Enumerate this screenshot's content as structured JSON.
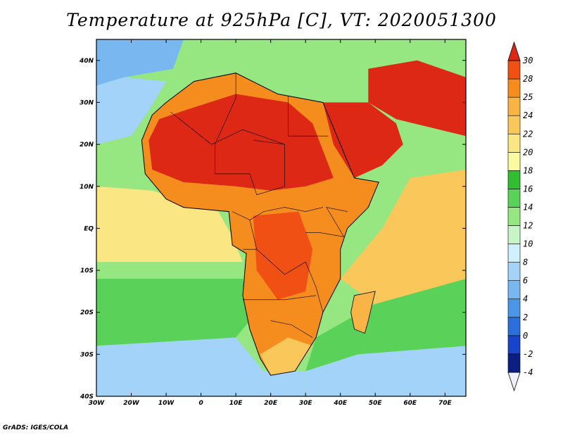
{
  "title": "Temperature at 925hPa [C], VT: 2020051300",
  "credit": "GrADS: IGES/COLA",
  "map": {
    "lon_range": [
      -30,
      76
    ],
    "lat_range": [
      -40,
      45
    ],
    "lon_ticks": [
      {
        "value": -30,
        "label": "30W"
      },
      {
        "value": -20,
        "label": "20W"
      },
      {
        "value": -10,
        "label": "10W"
      },
      {
        "value": 0,
        "label": "0"
      },
      {
        "value": 10,
        "label": "10E"
      },
      {
        "value": 20,
        "label": "20E"
      },
      {
        "value": 30,
        "label": "30E"
      },
      {
        "value": 40,
        "label": "40E"
      },
      {
        "value": 50,
        "label": "50E"
      },
      {
        "value": 60,
        "label": "60E"
      },
      {
        "value": 70,
        "label": "70E"
      }
    ],
    "lat_ticks": [
      {
        "value": 40,
        "label": "40N"
      },
      {
        "value": 30,
        "label": "30N"
      },
      {
        "value": 20,
        "label": "20N"
      },
      {
        "value": 10,
        "label": "10N"
      },
      {
        "value": 0,
        "label": "EQ"
      },
      {
        "value": -10,
        "label": "10S"
      },
      {
        "value": -20,
        "label": "20S"
      },
      {
        "value": -30,
        "label": "30S"
      },
      {
        "value": -40,
        "label": "40S"
      }
    ]
  },
  "colorbar": {
    "levels": [
      "30",
      "28",
      "25",
      "24",
      "22",
      "20",
      "18",
      "16",
      "14",
      "12",
      "10",
      "8",
      "6",
      "4",
      "2",
      "0",
      "-2",
      "-4"
    ],
    "colors": [
      "#f0f0fa",
      "#0d1e82",
      "#1744c8",
      "#2a6fdc",
      "#4b96e6",
      "#78b7f0",
      "#a3d3f8",
      "#cff0fc",
      "#c8f5c8",
      "#96e682",
      "#5ad25a",
      "#32be32",
      "#fafaa0",
      "#fae682",
      "#fac85a",
      "#fab446",
      "#f58c1e",
      "#f05014",
      "#dc2814"
    ]
  },
  "field": {
    "regions": [
      {
        "name": "north-cold-sea",
        "lonlat": [
          [
            -30,
            45
          ],
          [
            -5,
            45
          ],
          [
            -8,
            38
          ],
          [
            -22,
            36
          ],
          [
            -30,
            34
          ]
        ],
        "color": "#78b7f0"
      },
      {
        "name": "atlantic-mid",
        "lonlat": [
          [
            -30,
            34
          ],
          [
            -22,
            36
          ],
          [
            -10,
            35
          ],
          [
            -15,
            28
          ],
          [
            -20,
            22
          ],
          [
            -30,
            20
          ]
        ],
        "color": "#a3d3f8"
      },
      {
        "name": "atlantic-green",
        "lonlat": [
          [
            -30,
            20
          ],
          [
            -20,
            22
          ],
          [
            -17,
            15
          ],
          [
            -17,
            9
          ],
          [
            -30,
            10
          ]
        ],
        "color": "#96e682"
      },
      {
        "name": "tropical-atlantic",
        "lonlat": [
          [
            -30,
            10
          ],
          [
            -14,
            9
          ],
          [
            5,
            4
          ],
          [
            9,
            -2
          ],
          [
            12,
            -8
          ],
          [
            -30,
            -8
          ]
        ],
        "color": "#fae682"
      },
      {
        "name": "south-atlantic-green",
        "lonlat": [
          [
            -30,
            -12
          ],
          [
            12,
            -12
          ],
          [
            14,
            -22
          ],
          [
            10,
            -26
          ],
          [
            -30,
            -28
          ]
        ],
        "color": "#5ad25a"
      },
      {
        "name": "south-atlantic-blue",
        "lonlat": [
          [
            -30,
            -28
          ],
          [
            10,
            -26
          ],
          [
            18,
            -34
          ],
          [
            30,
            -34
          ],
          [
            30,
            -40
          ],
          [
            -30,
            -40
          ]
        ],
        "color": "#a3d3f8"
      },
      {
        "name": "indian-south",
        "lonlat": [
          [
            30,
            -34
          ],
          [
            45,
            -30
          ],
          [
            76,
            -28
          ],
          [
            76,
            -40
          ],
          [
            30,
            -40
          ]
        ],
        "color": "#a3d3f8"
      },
      {
        "name": "indian-mid",
        "lonlat": [
          [
            33,
            -26
          ],
          [
            50,
            -18
          ],
          [
            76,
            -12
          ],
          [
            76,
            -28
          ],
          [
            45,
            -30
          ],
          [
            30,
            -34
          ]
        ],
        "color": "#5ad25a"
      },
      {
        "name": "indian-tropical",
        "lonlat": [
          [
            40,
            -12
          ],
          [
            52,
            0
          ],
          [
            60,
            12
          ],
          [
            76,
            14
          ],
          [
            76,
            -12
          ],
          [
            50,
            -18
          ]
        ],
        "color": "#fac85a"
      },
      {
        "name": "mediterranean",
        "lonlat": [
          [
            -6,
            36
          ],
          [
            12,
            38
          ],
          [
            28,
            37
          ],
          [
            36,
            36
          ],
          [
            34,
            33
          ],
          [
            20,
            32
          ],
          [
            10,
            34
          ],
          [
            -2,
            35
          ]
        ],
        "color": "#96e682"
      },
      {
        "name": "africa-land",
        "lonlat": [
          [
            -17,
            21
          ],
          [
            -16,
            13
          ],
          [
            -10,
            7
          ],
          [
            -5,
            5
          ],
          [
            8,
            4
          ],
          [
            9,
            -4
          ],
          [
            13,
            -6
          ],
          [
            12,
            -16
          ],
          [
            14,
            -24
          ],
          [
            17,
            -31
          ],
          [
            20,
            -35
          ],
          [
            27,
            -34
          ],
          [
            33,
            -26
          ],
          [
            35,
            -20
          ],
          [
            40,
            -12
          ],
          [
            40,
            -5
          ],
          [
            42,
            0
          ],
          [
            48,
            5
          ],
          [
            51,
            11
          ],
          [
            44,
            12
          ],
          [
            35,
            30
          ],
          [
            22,
            32
          ],
          [
            10,
            37
          ],
          [
            -2,
            35
          ],
          [
            -10,
            30
          ],
          [
            -14,
            27
          ]
        ],
        "color": "#f58c1e"
      },
      {
        "name": "sahara-hot",
        "lonlat": [
          [
            -15,
            21
          ],
          [
            -14,
            14
          ],
          [
            -5,
            11
          ],
          [
            10,
            10
          ],
          [
            20,
            9
          ],
          [
            30,
            10
          ],
          [
            38,
            12
          ],
          [
            32,
            25
          ],
          [
            25,
            30
          ],
          [
            10,
            32
          ],
          [
            -5,
            28
          ],
          [
            -12,
            26
          ]
        ],
        "color": "#dc2814"
      },
      {
        "name": "central-africa-hot",
        "lonlat": [
          [
            15,
            3
          ],
          [
            28,
            4
          ],
          [
            32,
            -5
          ],
          [
            30,
            -15
          ],
          [
            22,
            -17
          ],
          [
            16,
            -10
          ]
        ],
        "color": "#f05014"
      },
      {
        "name": "arabia",
        "lonlat": [
          [
            35,
            30
          ],
          [
            48,
            30
          ],
          [
            56,
            25
          ],
          [
            58,
            20
          ],
          [
            52,
            15
          ],
          [
            44,
            12
          ],
          [
            38,
            20
          ]
        ],
        "color": "#dc2814"
      },
      {
        "name": "persia",
        "lonlat": [
          [
            48,
            38
          ],
          [
            62,
            40
          ],
          [
            76,
            36
          ],
          [
            76,
            22
          ],
          [
            66,
            24
          ],
          [
            56,
            26
          ],
          [
            48,
            30
          ]
        ],
        "color": "#dc2814"
      },
      {
        "name": "cape-south",
        "lonlat": [
          [
            17,
            -30
          ],
          [
            20,
            -35
          ],
          [
            27,
            -34
          ],
          [
            32,
            -28
          ],
          [
            25,
            -26
          ]
        ],
        "color": "#fac85a"
      }
    ],
    "coast_outline": [
      [
        -17,
        21
      ],
      [
        -16,
        13
      ],
      [
        -10,
        7
      ],
      [
        -5,
        5
      ],
      [
        8,
        4
      ],
      [
        9,
        -4
      ],
      [
        13,
        -6
      ],
      [
        12,
        -16
      ],
      [
        14,
        -24
      ],
      [
        17,
        -31
      ],
      [
        20,
        -35
      ],
      [
        27,
        -34
      ],
      [
        33,
        -26
      ],
      [
        35,
        -20
      ],
      [
        40,
        -12
      ],
      [
        40,
        -5
      ],
      [
        42,
        0
      ],
      [
        48,
        5
      ],
      [
        51,
        11
      ],
      [
        44,
        12
      ],
      [
        35,
        30
      ],
      [
        22,
        32
      ],
      [
        10,
        37
      ],
      [
        -2,
        35
      ],
      [
        -10,
        30
      ],
      [
        -14,
        27
      ],
      [
        -17,
        21
      ]
    ],
    "borders": [
      [
        [
          -8.7,
          27.7
        ],
        [
          3,
          20
        ],
        [
          12,
          23.5
        ],
        [
          24,
          20
        ],
        [
          24,
          10
        ]
      ],
      [
        [
          10,
          37
        ],
        [
          10,
          31
        ],
        [
          4,
          20
        ]
      ],
      [
        [
          25,
          31.5
        ],
        [
          25,
          22
        ],
        [
          36.5,
          22
        ]
      ],
      [
        [
          4,
          20
        ],
        [
          4,
          13
        ],
        [
          14,
          13
        ],
        [
          16,
          8
        ],
        [
          24,
          10
        ]
      ],
      [
        [
          15,
          21
        ],
        [
          24,
          20
        ]
      ],
      [
        [
          9,
          4
        ],
        [
          14,
          2
        ],
        [
          18,
          4
        ],
        [
          24,
          5
        ],
        [
          30,
          4
        ],
        [
          35,
          5
        ]
      ],
      [
        [
          14,
          2
        ],
        [
          16,
          -5
        ],
        [
          12,
          -5
        ]
      ],
      [
        [
          16,
          -5
        ],
        [
          24,
          -11
        ],
        [
          30,
          -8
        ],
        [
          33,
          -14
        ],
        [
          35,
          -20
        ]
      ],
      [
        [
          12,
          -17
        ],
        [
          24,
          -17
        ],
        [
          33,
          -16
        ]
      ],
      [
        [
          20,
          -22
        ],
        [
          26,
          -23
        ],
        [
          32,
          -26
        ]
      ],
      [
        [
          30,
          -1
        ],
        [
          34,
          -1
        ],
        [
          41,
          -2
        ],
        [
          36,
          5
        ],
        [
          42,
          4
        ]
      ]
    ],
    "madagascar": [
      [
        44,
        -16
      ],
      [
        50,
        -15
      ],
      [
        48,
        -22
      ],
      [
        47,
        -25
      ],
      [
        44,
        -24
      ],
      [
        43,
        -20
      ]
    ]
  }
}
